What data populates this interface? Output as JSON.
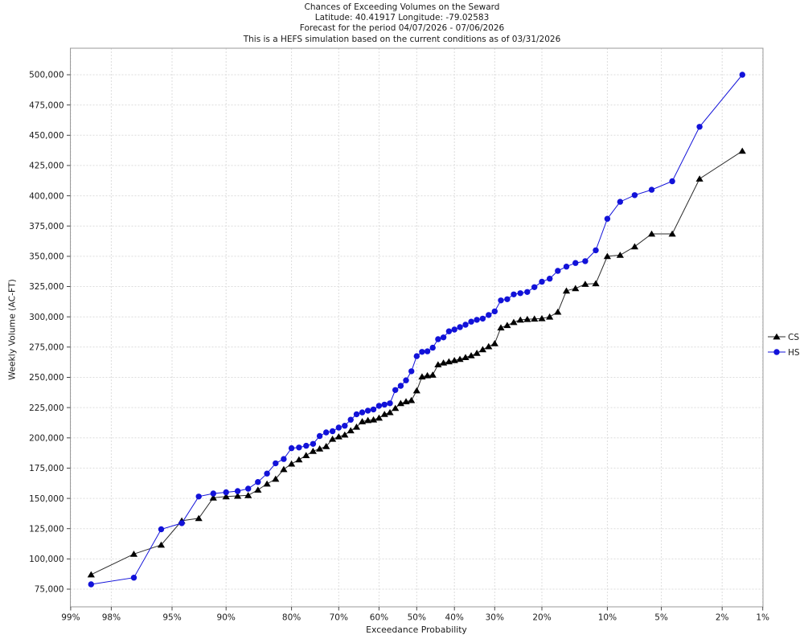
{
  "chart_data": {
    "type": "line",
    "title_lines": [
      "Chances of Exceeding Volumes on the Seward",
      "Latitude: 40.41917 Longitude: -79.02583",
      "Forecast for the period 04/07/2026 - 07/06/2026",
      "This is a HEFS simulation based on the current conditions as of 03/31/2026"
    ],
    "xlabel": "Exceedance Probability",
    "ylabel": "Weekly Volume (AC-FT)",
    "x_scale": "probit",
    "grid": true,
    "legend_position": "right-outside",
    "xlim_percent": [
      99,
      1
    ],
    "ylim": [
      60000,
      520000
    ],
    "x_tick_percents": [
      99,
      98,
      95,
      90,
      80,
      70,
      60,
      50,
      40,
      30,
      20,
      10,
      5,
      2,
      1
    ],
    "x_tick_labels": [
      "99%",
      "98%",
      "95%",
      "90%",
      "80%",
      "70%",
      "60%",
      "50%",
      "40%",
      "30%",
      "20%",
      "10%",
      "5%",
      "2%",
      "1%"
    ],
    "y_ticks": [
      75000,
      100000,
      125000,
      150000,
      175000,
      200000,
      225000,
      250000,
      275000,
      300000,
      325000,
      350000,
      375000,
      400000,
      425000,
      450000,
      475000,
      500000
    ],
    "colors": {
      "cs": "#000000",
      "cs_line": "#2b2b2b",
      "hs": "#1212d9",
      "grid": "#dcdcdc",
      "axis": "#9a9a9a",
      "tick": "#444444",
      "text": "#1a1a1a"
    },
    "exceedance_percent": [
      98.57,
      97.14,
      95.71,
      94.29,
      92.86,
      91.43,
      90,
      88.57,
      87.14,
      85.71,
      84.29,
      82.86,
      81.43,
      80,
      78.57,
      77.14,
      75.71,
      74.29,
      72.86,
      71.43,
      70,
      68.57,
      67.14,
      65.71,
      64.29,
      62.86,
      61.43,
      60,
      58.57,
      57.14,
      55.71,
      54.29,
      52.86,
      51.43,
      50,
      48.57,
      47.14,
      45.71,
      44.29,
      42.86,
      41.43,
      40,
      38.57,
      37.14,
      35.71,
      34.29,
      32.86,
      31.43,
      30,
      28.57,
      27.14,
      25.71,
      24.29,
      22.86,
      21.43,
      20,
      18.57,
      17.14,
      15.71,
      14.29,
      12.86,
      11.43,
      10,
      8.57,
      7.14,
      5.71,
      4.29,
      2.86,
      1.43
    ],
    "series": [
      {
        "name": "CS",
        "marker": "triangle",
        "color_key": "cs",
        "values": [
          87000,
          104000,
          111500,
          131500,
          133500,
          150500,
          151500,
          152000,
          152500,
          157000,
          162000,
          166000,
          174000,
          178500,
          182000,
          185500,
          189000,
          191000,
          193000,
          199000,
          201000,
          202500,
          206000,
          209000,
          213500,
          214500,
          215000,
          216500,
          219500,
          221000,
          224500,
          228500,
          230000,
          231000,
          239000,
          250500,
          251500,
          252000,
          260500,
          262000,
          263000,
          264000,
          265000,
          266500,
          268000,
          270000,
          273000,
          275500,
          278000,
          291000,
          293000,
          295500,
          297500,
          298000,
          298300,
          298600,
          300000,
          304000,
          321500,
          323500,
          327000,
          327500,
          350000,
          351000,
          358000,
          368500,
          368500,
          414000,
          437000
        ]
      },
      {
        "name": "HS",
        "marker": "circle",
        "color_key": "hs",
        "values": [
          79000,
          84500,
          124500,
          129500,
          151500,
          154000,
          155000,
          156000,
          158000,
          163500,
          170500,
          179000,
          182500,
          191500,
          192000,
          193500,
          195000,
          201500,
          204500,
          205500,
          208500,
          210000,
          215000,
          219500,
          221000,
          222500,
          223500,
          226500,
          227500,
          228500,
          239500,
          243000,
          247500,
          255000,
          267500,
          271000,
          271500,
          274500,
          281500,
          283000,
          288000,
          289500,
          291500,
          293500,
          296000,
          297500,
          298500,
          301500,
          304500,
          313500,
          314500,
          318500,
          319500,
          320500,
          324500,
          329000,
          331500,
          338000,
          341500,
          344500,
          346000,
          355000,
          381000,
          395000,
          400500,
          405000,
          412000,
          457000,
          500000
        ]
      }
    ]
  }
}
